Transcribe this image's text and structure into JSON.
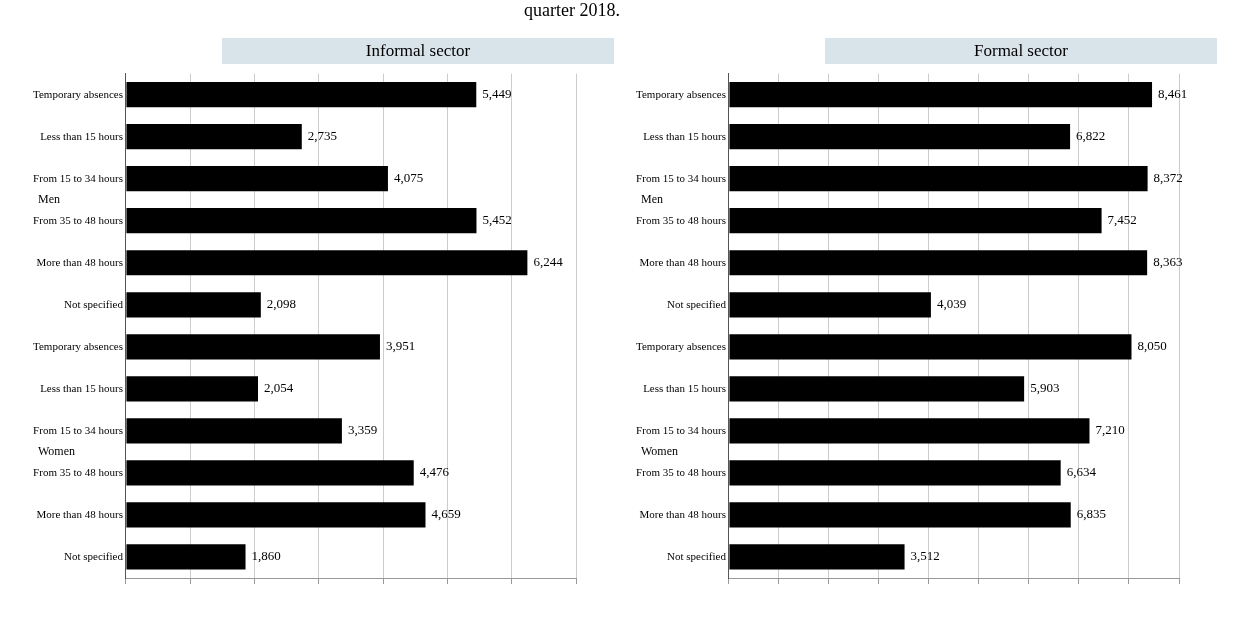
{
  "chart_data": [
    {
      "type": "bar",
      "orientation": "horizontal",
      "subtitle": "quarter 2018.",
      "title": "Informal sector",
      "categories": [
        "Temporary absences",
        "Less than 15 hours",
        "From 15 to 34 hours",
        "From 35 to 48 hours",
        "More than 48 hours",
        "Not specified",
        "Temporary absences",
        "Less than 15 hours",
        "From 15 to 34 hours",
        "From 35 to 48 hours",
        "More than 48 hours",
        "Not specified"
      ],
      "annotations": [
        "Men",
        "Women"
      ],
      "values": [
        5449,
        2735,
        4075,
        5452,
        6244,
        2098,
        3951,
        2054,
        3359,
        4476,
        4659,
        1860
      ],
      "color": "#000000",
      "value_labels": [
        "5,449",
        "2,735",
        "4,075",
        "5,452",
        "6,244",
        "2,098",
        "3,951",
        "2,054",
        "3,359",
        "4,476",
        "4,659",
        "1,860"
      ],
      "grid": "x",
      "tick_labels": "y",
      "legend": false
    },
    {
      "type": "bar",
      "orientation": "horizontal",
      "title": "Formal sector",
      "categories": [
        "Temporary absences",
        "Less than 15 hours",
        "From 15 to 34 hours",
        "From 35 to 48 hours",
        "More than 48 hours",
        "Not specified",
        "Temporary absences",
        "Less than 15 hours",
        "From 15 to 34 hours",
        "From 35 to 48 hours",
        "More than 48 hours",
        "Not specified"
      ],
      "annotations": [
        "Men",
        "Women"
      ],
      "values": [
        8461,
        6822,
        8372,
        7452,
        8363,
        4039,
        8050,
        5903,
        7210,
        6634,
        6835,
        3512
      ],
      "color": "#000000",
      "value_labels": [
        "8,461",
        "6,822",
        "8,372",
        "7,452",
        "8,363",
        "4,039",
        "8,050",
        "5,903",
        "7,210",
        "6,634",
        "6,835",
        "3,512"
      ],
      "grid": "x",
      "tick_labels": "y",
      "legend": false
    }
  ]
}
